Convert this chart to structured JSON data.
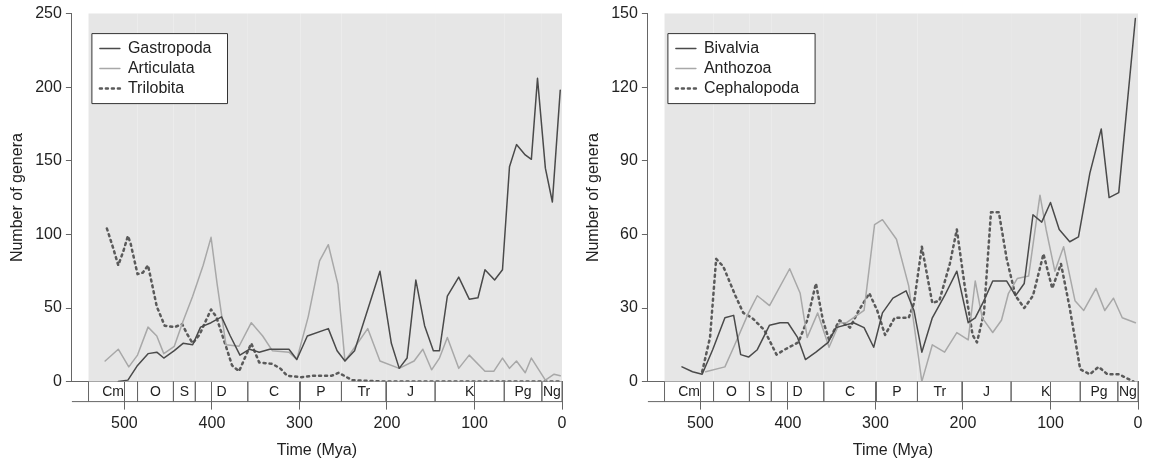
{
  "chart_data": [
    {
      "type": "line",
      "xlabel": "Time (Mya)",
      "ylabel": "Number of genera",
      "xlim": [
        560,
        0
      ],
      "ylim": [
        0,
        250
      ],
      "xticks": [
        500,
        400,
        300,
        200,
        100,
        0
      ],
      "yticks": [
        0,
        50,
        100,
        150,
        200,
        250
      ],
      "grid": false,
      "legend": "top left",
      "marker": "none",
      "bands": [
        {
          "axis": "x",
          "from": 541,
          "to": 485,
          "label": "Cm",
          "color": "#e6e6e6"
        },
        {
          "axis": "x",
          "from": 485,
          "to": 444,
          "label": "O",
          "color": "#e6e6e6"
        },
        {
          "axis": "x",
          "from": 444,
          "to": 419,
          "label": "S",
          "color": "#e6e6e6"
        },
        {
          "axis": "x",
          "from": 419,
          "to": 359,
          "label": "D",
          "color": "#e6e6e6"
        },
        {
          "axis": "x",
          "from": 359,
          "to": 299,
          "label": "C",
          "color": "#e6e6e6"
        },
        {
          "axis": "x",
          "from": 299,
          "to": 252,
          "label": "P",
          "color": "#e6e6e6"
        },
        {
          "axis": "x",
          "from": 252,
          "to": 201,
          "label": "Tr",
          "color": "#e6e6e6"
        },
        {
          "axis": "x",
          "from": 201,
          "to": 145,
          "label": "J",
          "color": "#e6e6e6"
        },
        {
          "axis": "x",
          "from": 145,
          "to": 66,
          "label": "K",
          "color": "#e6e6e6"
        },
        {
          "axis": "x",
          "from": 66,
          "to": 23,
          "label": "Pg",
          "color": "#e6e6e6"
        },
        {
          "axis": "x",
          "from": 23,
          "to": 0,
          "label": "Ng",
          "color": "#e6e6e6"
        }
      ],
      "series": [
        {
          "name": "Gastropoda",
          "color": "#4a4a4a",
          "line_style": "solid",
          "x": [
            507,
            496,
            485,
            473,
            463,
            455,
            443,
            433,
            422,
            413,
            401,
            389,
            379,
            368,
            357,
            346,
            334,
            322,
            312,
            303,
            291,
            267,
            257,
            248,
            237,
            208,
            195,
            186,
            177,
            167,
            157,
            147,
            140,
            131,
            118,
            106,
            96,
            88,
            77,
            68,
            60,
            52,
            42,
            35,
            28,
            19,
            11,
            2
          ],
          "values": [
            0,
            1,
            11,
            19,
            20,
            16,
            21,
            26,
            25,
            37,
            40,
            44,
            31,
            18,
            22,
            20,
            22,
            22,
            22,
            15,
            31,
            36,
            21,
            14,
            21,
            75,
            26,
            9,
            16,
            69,
            38,
            21,
            21,
            58,
            71,
            56,
            57,
            76,
            69,
            76,
            146,
            161,
            154,
            151,
            206,
            145,
            122,
            198
          ]
        },
        {
          "name": "Articulata",
          "color": "#a8a8a8",
          "line_style": "solid",
          "x": [
            522,
            507,
            495,
            485,
            473,
            463,
            455,
            443,
            433,
            422,
            410,
            401,
            394,
            384,
            369,
            355,
            342,
            331,
            312,
            303,
            290,
            277,
            267,
            256,
            248,
            236,
            222,
            208,
            186,
            169,
            159,
            149,
            140,
            131,
            118,
            106,
            88,
            78,
            68,
            60,
            52,
            42,
            35,
            19,
            9,
            2
          ],
          "values": [
            14,
            22,
            10,
            18,
            37,
            31,
            19,
            24,
            41,
            58,
            79,
            98,
            66,
            25,
            24,
            40,
            31,
            21,
            20,
            15,
            44,
            82,
            93,
            66,
            14,
            24,
            36,
            14,
            9,
            14,
            22,
            8,
            16,
            30,
            9,
            18,
            7,
            7,
            16,
            9,
            14,
            6,
            16,
            1,
            5,
            4
          ]
        },
        {
          "name": "Trilobita",
          "color": "#5a5a5a",
          "line_style": "dotted",
          "x": [
            520,
            513,
            507,
            501,
            496,
            493,
            485,
            479,
            473,
            463,
            454,
            443,
            434,
            428,
            422,
            414,
            408,
            401,
            395,
            384,
            377,
            369,
            361,
            355,
            346,
            331,
            322,
            314,
            298,
            283,
            263,
            255,
            240,
            200,
            100,
            0
          ],
          "values": [
            104,
            91,
            79,
            89,
            99,
            94,
            73,
            74,
            79,
            51,
            38,
            37,
            39,
            32,
            26,
            32,
            40,
            49,
            44,
            24,
            11,
            7,
            18,
            26,
            13,
            12,
            9,
            4,
            3,
            4,
            4,
            6,
            1,
            0,
            0,
            0
          ]
        }
      ]
    },
    {
      "type": "line",
      "xlabel": "Time (Mya)",
      "ylabel": "Number of genera",
      "xlim": [
        560,
        0
      ],
      "ylim": [
        0,
        150
      ],
      "xticks": [
        500,
        400,
        300,
        200,
        100,
        0
      ],
      "yticks": [
        0,
        30,
        60,
        90,
        120,
        150
      ],
      "grid": false,
      "legend": "top left",
      "marker": "none",
      "bands": [
        {
          "axis": "x",
          "from": 541,
          "to": 485,
          "label": "Cm",
          "color": "#e6e6e6"
        },
        {
          "axis": "x",
          "from": 485,
          "to": 444,
          "label": "O",
          "color": "#e6e6e6"
        },
        {
          "axis": "x",
          "from": 444,
          "to": 419,
          "label": "S",
          "color": "#e6e6e6"
        },
        {
          "axis": "x",
          "from": 419,
          "to": 359,
          "label": "D",
          "color": "#e6e6e6"
        },
        {
          "axis": "x",
          "from": 359,
          "to": 299,
          "label": "C",
          "color": "#e6e6e6"
        },
        {
          "axis": "x",
          "from": 299,
          "to": 252,
          "label": "P",
          "color": "#e6e6e6"
        },
        {
          "axis": "x",
          "from": 252,
          "to": 201,
          "label": "Tr",
          "color": "#e6e6e6"
        },
        {
          "axis": "x",
          "from": 201,
          "to": 145,
          "label": "J",
          "color": "#e6e6e6"
        },
        {
          "axis": "x",
          "from": 145,
          "to": 66,
          "label": "K",
          "color": "#e6e6e6"
        },
        {
          "axis": "x",
          "from": 66,
          "to": 23,
          "label": "Pg",
          "color": "#e6e6e6"
        },
        {
          "axis": "x",
          "from": 23,
          "to": 0,
          "label": "Ng",
          "color": "#e6e6e6"
        }
      ],
      "series": [
        {
          "name": "Bivalvia",
          "color": "#4a4a4a",
          "line_style": "solid",
          "x": [
            521,
            509,
            498,
            486,
            472,
            462,
            454,
            445,
            435,
            421,
            409,
            400,
            389,
            380,
            368,
            354,
            345,
            325,
            313,
            302,
            292,
            280,
            265,
            256,
            247,
            235,
            221,
            207,
            194,
            186,
            176,
            166,
            156,
            150,
            140,
            130,
            120,
            110,
            100,
            90,
            78,
            68,
            55,
            42,
            33,
            22,
            3
          ],
          "values": [
            6,
            4,
            3,
            13,
            26,
            27,
            11,
            10,
            13,
            23,
            24,
            24,
            18,
            9,
            12,
            16,
            22,
            24,
            22,
            14,
            28,
            34,
            37,
            29,
            12,
            26,
            35,
            45,
            24,
            26,
            33,
            41,
            41,
            41,
            35,
            40,
            68,
            65,
            73,
            62,
            57,
            59,
            85,
            103,
            75,
            77,
            148
          ]
        },
        {
          "name": "Anthozoa",
          "color": "#a8a8a8",
          "line_style": "solid",
          "x": [
            494,
            472,
            462,
            445,
            435,
            421,
            398,
            386,
            378,
            366,
            353,
            341,
            333,
            313,
            301,
            292,
            276,
            262,
            247,
            235,
            221,
            207,
            194,
            186,
            178,
            166,
            156,
            148,
            138,
            125,
            112,
            105,
            95,
            85,
            72,
            62,
            48,
            38,
            28,
            18,
            3
          ],
          "values": [
            4,
            6,
            14,
            28,
            35,
            31,
            46,
            36,
            18,
            28,
            14,
            24,
            24,
            29,
            64,
            66,
            58,
            39,
            0,
            15,
            12,
            20,
            17,
            41,
            26,
            20,
            25,
            36,
            42,
            43,
            76,
            62,
            45,
            55,
            33,
            29,
            38,
            29,
            34,
            26,
            24
          ]
        },
        {
          "name": "Cephalopoda",
          "color": "#5a5a5a",
          "line_style": "dotted",
          "x": [
            498,
            489,
            482,
            474,
            460,
            451,
            441,
            427,
            413,
            404,
            388,
            378,
            368,
            360,
            353,
            341,
            329,
            319,
            307,
            298,
            289,
            278,
            262,
            256,
            247,
            235,
            227,
            215,
            207,
            198,
            189,
            184,
            176,
            168,
            159,
            150,
            140,
            130,
            120,
            108,
            98,
            88,
            78,
            66,
            55,
            45,
            35,
            22,
            5
          ],
          "values": [
            4,
            18,
            50,
            47,
            35,
            28,
            26,
            21,
            11,
            13,
            16,
            25,
            40,
            25,
            17,
            25,
            22,
            29,
            36,
            29,
            19,
            26,
            26,
            32,
            55,
            32,
            33,
            48,
            62,
            39,
            19,
            16,
            28,
            69,
            69,
            50,
            35,
            30,
            35,
            52,
            38,
            48,
            30,
            5,
            3,
            6,
            3,
            3,
            0
          ]
        }
      ]
    }
  ]
}
